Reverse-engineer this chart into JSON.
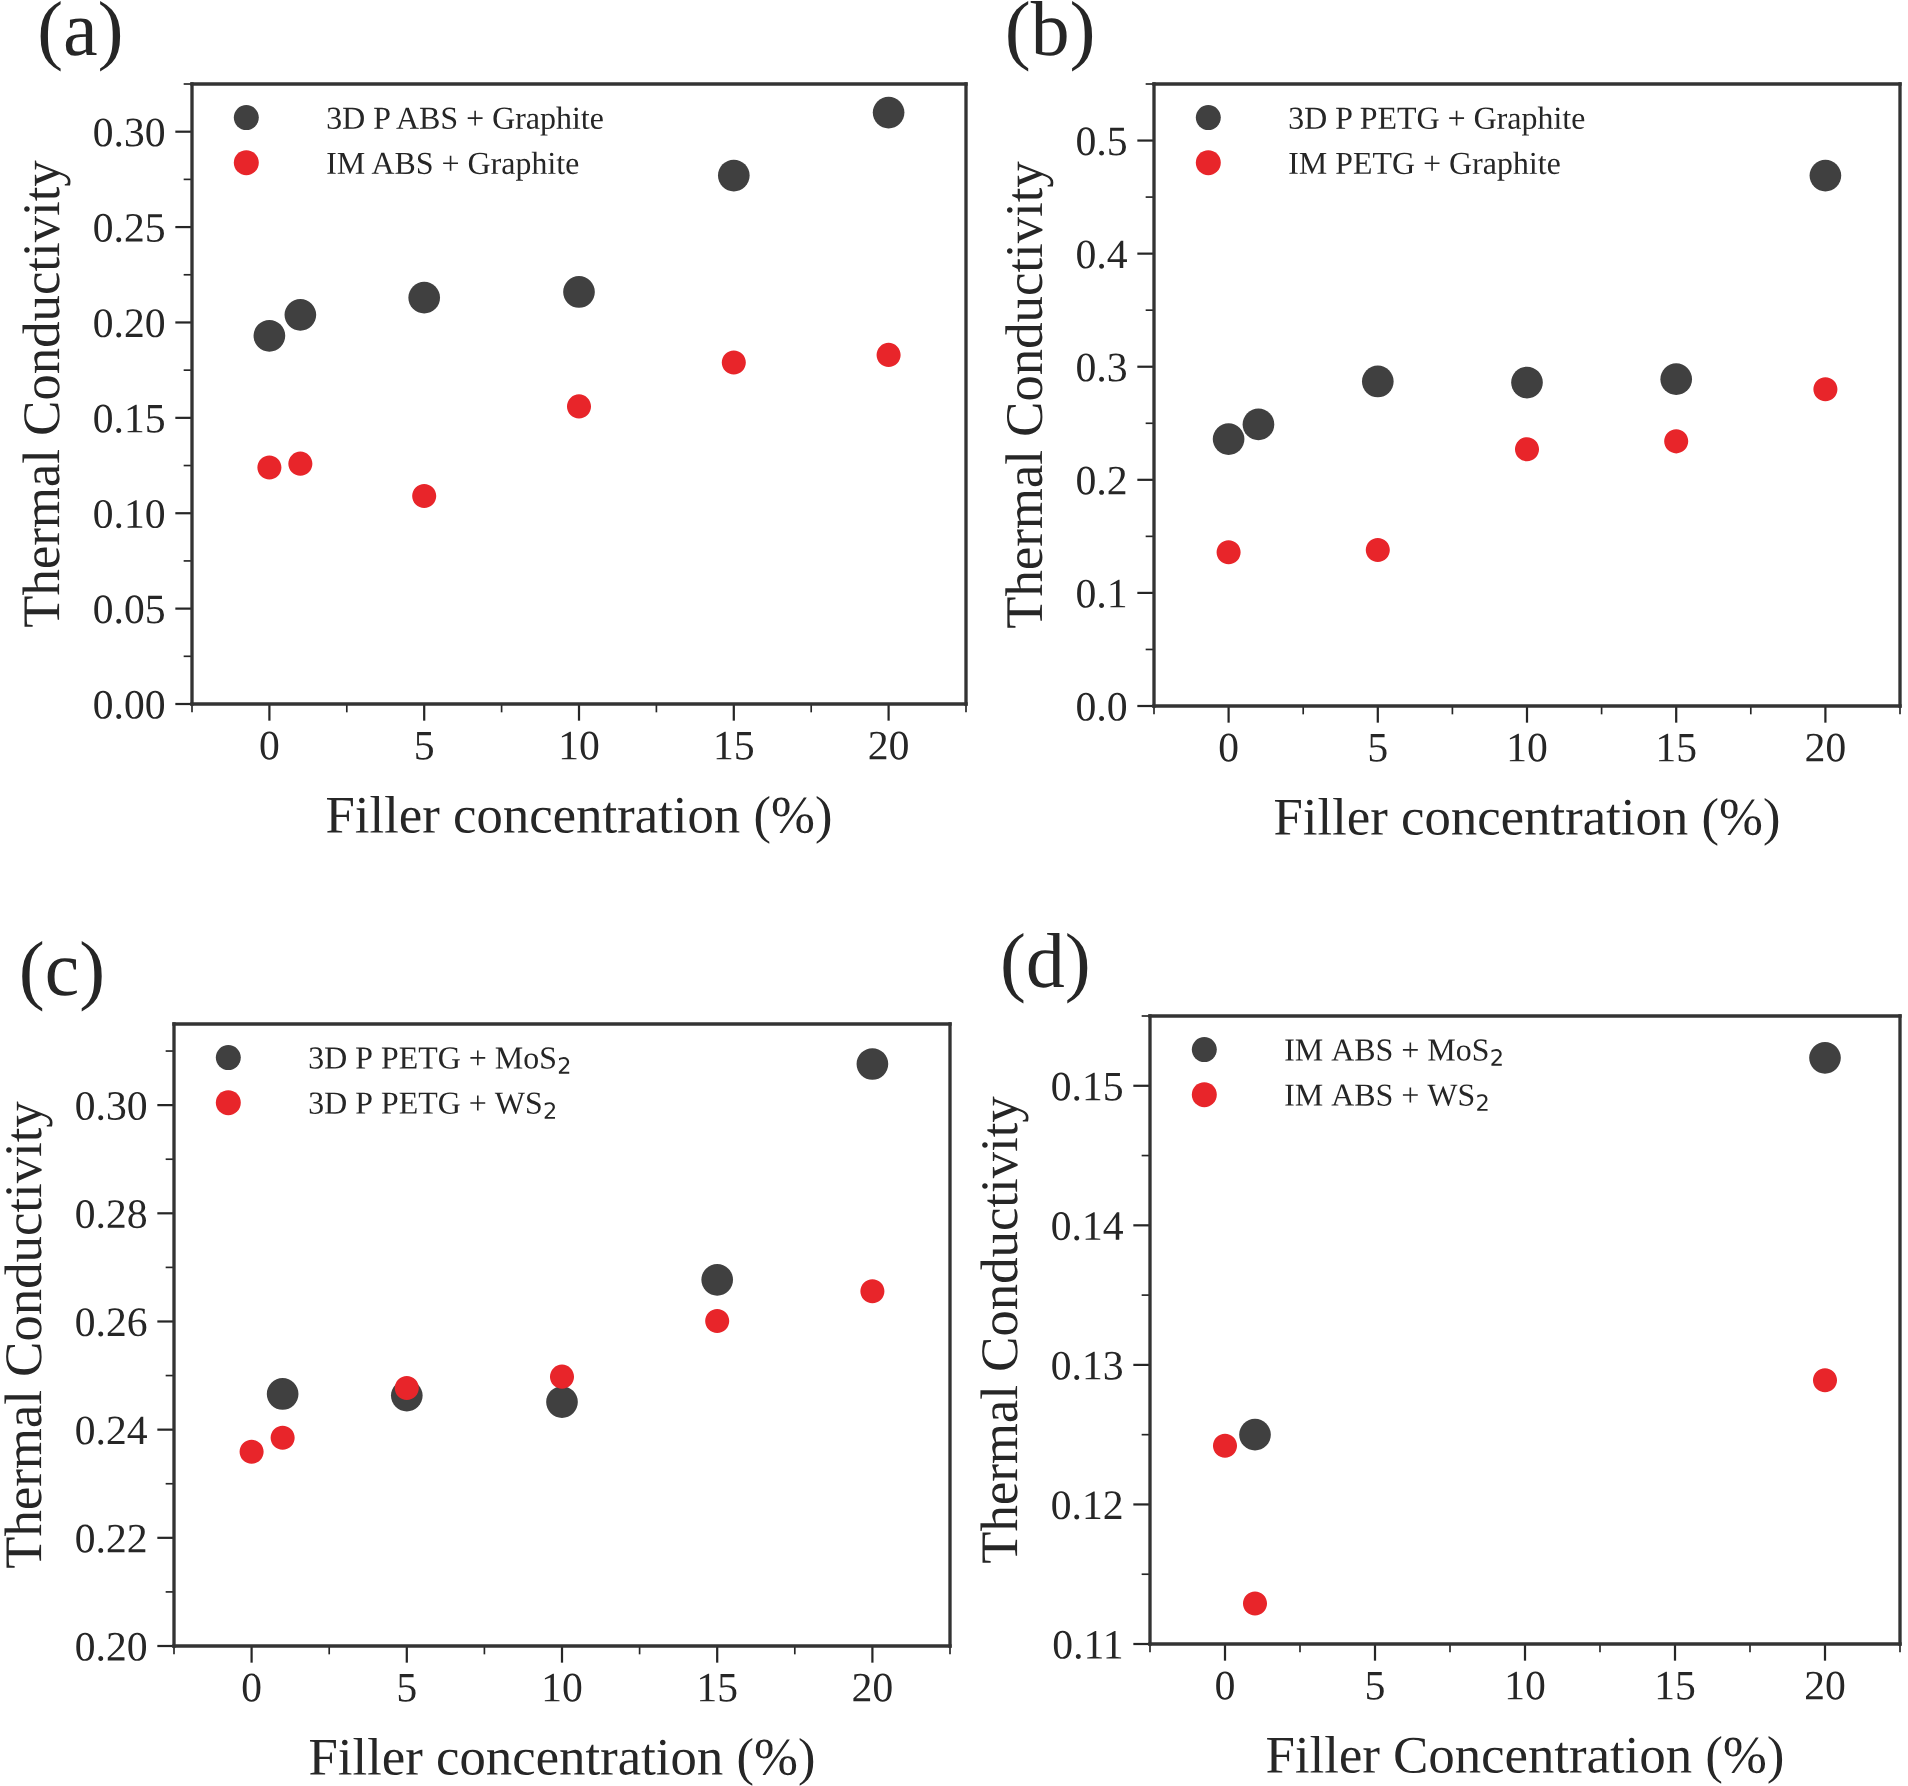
{
  "chart_data": [
    {
      "type": "scatter",
      "title": "(a)",
      "xlabel": "Filler concentration (%)",
      "ylabel": "Thermal Conductivity",
      "legend": "top left",
      "marker": "circle",
      "grid": false,
      "xlim": [
        -2.5,
        22.5
      ],
      "xticks": [
        0,
        5,
        10,
        15,
        20
      ],
      "ylim": [
        0,
        0.325
      ],
      "yticks": [
        {
          "value": 0,
          "label": "0.00"
        },
        0.05,
        {
          "value": 0.1,
          "label": "0.10"
        },
        0.15,
        {
          "value": 0.2,
          "label": "0.20"
        },
        0.25,
        {
          "value": 0.3,
          "label": "0.30"
        }
      ],
      "series": [
        {
          "name": "3D P ABS + Graphite",
          "color": "#404040",
          "x": [
            0,
            1,
            5,
            10,
            15,
            20
          ],
          "values": [
            0.193,
            0.204,
            0.213,
            0.216,
            0.277,
            0.31
          ]
        },
        {
          "name": "IM ABS + Graphite",
          "color": "#e8252a",
          "x": [
            0,
            1,
            5,
            10,
            15,
            20
          ],
          "values": [
            0.124,
            0.126,
            0.109,
            0.156,
            0.179,
            0.183
          ]
        }
      ]
    },
    {
      "type": "scatter",
      "title": "(b)",
      "xlabel": "Filler concentration (%)",
      "ylabel": "Thermal Conductivity",
      "legend": "top left",
      "marker": "circle",
      "grid": false,
      "xlim": [
        -2.5,
        22.5
      ],
      "xticks": [
        0,
        5,
        10,
        15,
        20
      ],
      "ylim": [
        0,
        0.55
      ],
      "yticks": [
        {
          "value": 0,
          "label": "0.0"
        },
        0.1,
        0.2,
        0.3,
        0.4,
        0.5
      ],
      "series": [
        {
          "name": "3D P PETG + Graphite",
          "color": "#404040",
          "x": [
            0,
            1,
            5,
            10,
            15,
            20
          ],
          "values": [
            0.236,
            0.249,
            0.287,
            0.286,
            0.289,
            0.469
          ]
        },
        {
          "name": "IM PETG + Graphite",
          "color": "#e8252a",
          "x": [
            0,
            5,
            10,
            15,
            20
          ],
          "values": [
            0.136,
            0.138,
            0.227,
            0.234,
            0.28
          ]
        }
      ]
    },
    {
      "type": "scatter",
      "title": "(c)",
      "xlabel": "Filler concentration (%)",
      "ylabel": "Thermal Conductivity",
      "legend": "top left",
      "marker": "circle",
      "grid": false,
      "xlim": [
        -2.5,
        22.5
      ],
      "xticks": [
        0,
        5,
        10,
        15,
        20
      ],
      "ylim": [
        0.2,
        0.315
      ],
      "yticks": [
        {
          "value": 0.2,
          "label": "0.20"
        },
        0.22,
        0.24,
        0.26,
        0.28,
        {
          "value": 0.3,
          "label": "0.30"
        }
      ],
      "series": [
        {
          "name": "3D P PETG + MoS$_{2}$",
          "color": "#404040",
          "x": [
            1,
            5,
            10,
            15,
            20
          ],
          "values": [
            0.2466,
            0.2463,
            0.2451,
            0.2677,
            0.3076
          ]
        },
        {
          "name": "3D P PETG + WS$_{2}$",
          "color": "#e8252a",
          "x": [
            0,
            1,
            5,
            10,
            15,
            20
          ],
          "values": [
            0.2359,
            0.2385,
            0.2477,
            0.2498,
            0.2601,
            0.2656
          ]
        }
      ]
    },
    {
      "type": "scatter",
      "title": "(d)",
      "xlabel": "Filler Concentration (%)",
      "ylabel": "Thermal Conductivity",
      "legend": "top left",
      "marker": "circle",
      "grid": false,
      "xlim": [
        -2.5,
        22.5
      ],
      "xticks": [
        0,
        5,
        10,
        15,
        20
      ],
      "ylim": [
        0.11,
        0.155
      ],
      "yticks": [
        0.11,
        0.12,
        0.13,
        0.14,
        {
          "value": 0.15,
          "label": "0.15"
        }
      ],
      "series": [
        {
          "name": "IM ABS + MoS$_{2}$",
          "color": "#404040",
          "x": [
            1,
            20
          ],
          "values": [
            0.125,
            0.152
          ]
        },
        {
          "name": "IM ABS + WS$_{2}$",
          "color": "#e8252a",
          "x": [
            0,
            1,
            20
          ],
          "values": [
            0.1242,
            0.1129,
            0.1289
          ]
        }
      ]
    }
  ]
}
